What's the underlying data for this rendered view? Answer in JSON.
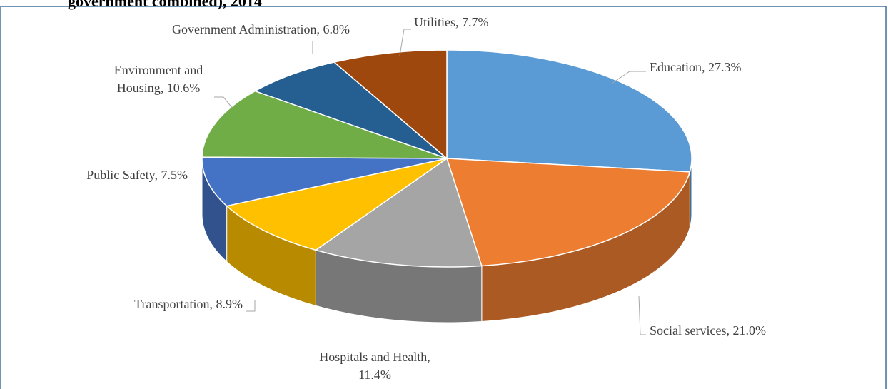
{
  "chart_data": {
    "type": "pie3d",
    "title": "government combined), 2014",
    "value_labels": [
      "Education, 27.3%",
      "Social services, 21.0%",
      "Hospitals and Health,\n11.4%",
      "Transportation, 8.9%",
      "Public Safety, 7.5%",
      "Environment and\nHousing, 10.6%",
      "Government Administration, 6.8%",
      "Utilities, 7.7%"
    ],
    "values": [
      27.3,
      21.0,
      11.4,
      8.9,
      7.5,
      10.6,
      6.8,
      7.7
    ],
    "colors": [
      "#5b9bd5",
      "#ed7d31",
      "#a5a5a5",
      "#ffc000",
      "#4472c4",
      "#70ad47",
      "#255e91",
      "#9e480e"
    ]
  }
}
